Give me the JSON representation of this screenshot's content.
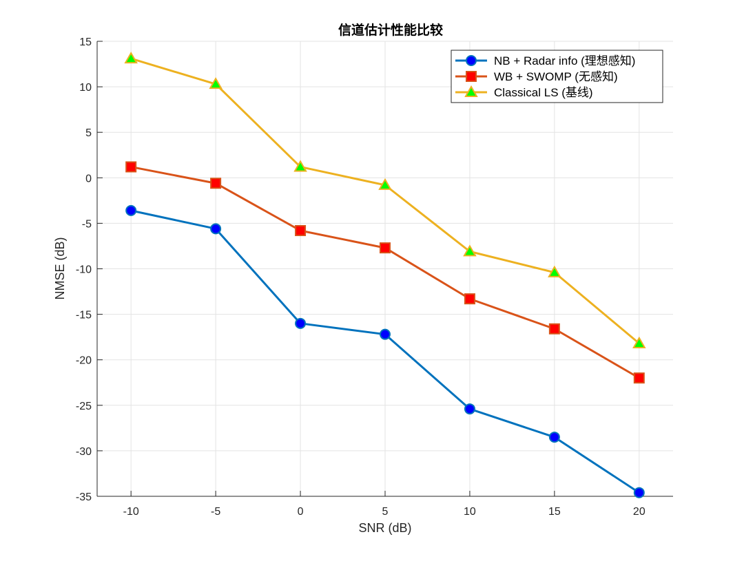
{
  "chart_data": {
    "type": "line",
    "title": "信道估计性能比较",
    "xlabel": "SNR (dB)",
    "ylabel": "NMSE (dB)",
    "x": [
      -10,
      -5,
      0,
      5,
      10,
      15,
      20
    ],
    "xlim": [
      -12,
      22
    ],
    "ylim": [
      -35,
      15
    ],
    "xticks": [
      -10,
      -5,
      0,
      5,
      10,
      15,
      20
    ],
    "yticks": [
      15,
      10,
      5,
      0,
      -5,
      -10,
      -15,
      -20,
      -25,
      -30,
      -35
    ],
    "grid": true,
    "legend_position": "top-right",
    "series": [
      {
        "name": "NB + Radar info (理想感知)",
        "values": [
          -3.6,
          -5.6,
          -16.0,
          -17.2,
          -25.4,
          -28.5,
          -34.6
        ],
        "color": "#0072BD",
        "marker": "circle",
        "marker_fill": "#0000FF"
      },
      {
        "name": "WB + SWOMP (无感知)",
        "values": [
          1.2,
          -0.6,
          -5.8,
          -7.7,
          -13.3,
          -16.6,
          -22.0
        ],
        "color": "#D95319",
        "marker": "square",
        "marker_fill": "#FF0000"
      },
      {
        "name": "Classical LS (基线)",
        "values": [
          13.1,
          10.3,
          1.2,
          -0.8,
          -8.1,
          -10.4,
          -18.2
        ],
        "color": "#EDB120",
        "marker": "triangle",
        "marker_fill": "#00FF00"
      }
    ]
  }
}
